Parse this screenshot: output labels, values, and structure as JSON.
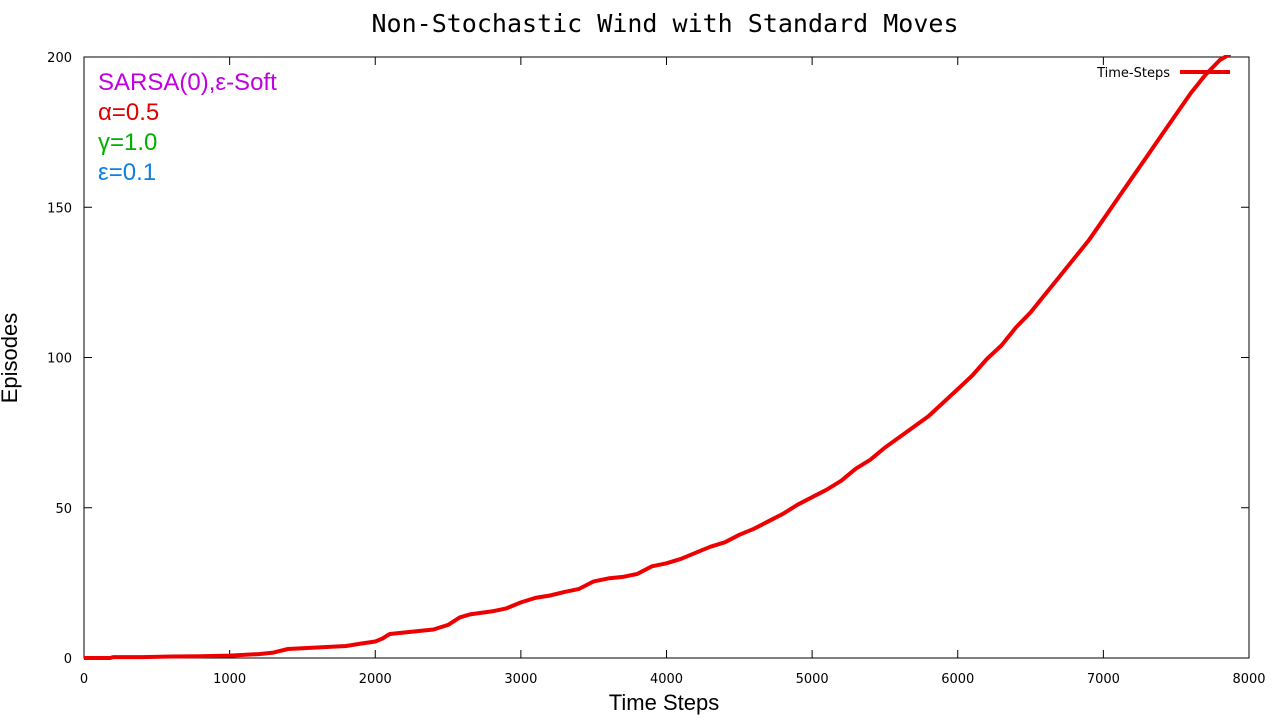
{
  "chart_data": {
    "type": "line",
    "title": "Non-Stochastic Wind with Standard Moves",
    "xlabel": "Time Steps",
    "ylabel": "Episodes",
    "xlim": [
      0,
      8000
    ],
    "ylim": [
      0,
      200
    ],
    "x_ticks": [
      "0",
      "1000",
      "2000",
      "3000",
      "4000",
      "5000",
      "6000",
      "7000",
      "8000"
    ],
    "y_ticks": [
      "0",
      "50",
      "100",
      "150",
      "200"
    ],
    "grid": false,
    "legend_position": "top-right",
    "annotations": [
      {
        "text": "SARSA(0),ε-Soft",
        "color": "#c000e0"
      },
      {
        "text": "α=0.5",
        "color": "#e00000"
      },
      {
        "text": "γ=1.0",
        "color": "#00b000"
      },
      {
        "text": "ε=0.1",
        "color": "#1080e0"
      }
    ],
    "series": [
      {
        "name": "Time-Steps",
        "color": "#ee0000",
        "x": [
          0,
          180,
          200,
          400,
          600,
          800,
          1000,
          1200,
          1300,
          1400,
          1600,
          1800,
          1900,
          2000,
          2050,
          2100,
          2200,
          2300,
          2400,
          2500,
          2580,
          2650,
          2800,
          2900,
          3000,
          3100,
          3200,
          3300,
          3400,
          3500,
          3600,
          3700,
          3800,
          3900,
          4000,
          4100,
          4200,
          4300,
          4400,
          4500,
          4600,
          4700,
          4800,
          4900,
          5000,
          5100,
          5200,
          5300,
          5400,
          5500,
          5600,
          5700,
          5800,
          5900,
          6000,
          6100,
          6200,
          6300,
          6400,
          6500,
          6600,
          6700,
          6800,
          6900,
          7000,
          7100,
          7200,
          7300,
          7400,
          7500,
          7600,
          7700,
          7800,
          7870
        ],
        "values": [
          0,
          0,
          0.3,
          0.3,
          0.5,
          0.6,
          0.8,
          1.3,
          1.8,
          3,
          3.5,
          4,
          4.8,
          5.5,
          6.5,
          8,
          8.5,
          9,
          9.5,
          11,
          13.5,
          14.5,
          15.5,
          16.5,
          18.5,
          20,
          20.8,
          22,
          23,
          25.5,
          26.5,
          27,
          28,
          30.5,
          31.5,
          33,
          35,
          37,
          38.5,
          41,
          43,
          45.5,
          48,
          51,
          53.5,
          56,
          59,
          63,
          66,
          70,
          73.5,
          77,
          80.5,
          85,
          89.5,
          94,
          99.5,
          104,
          110,
          115,
          121,
          127,
          133,
          139,
          146,
          153,
          160,
          167,
          174,
          181,
          188,
          194,
          199,
          201
        ]
      }
    ]
  }
}
